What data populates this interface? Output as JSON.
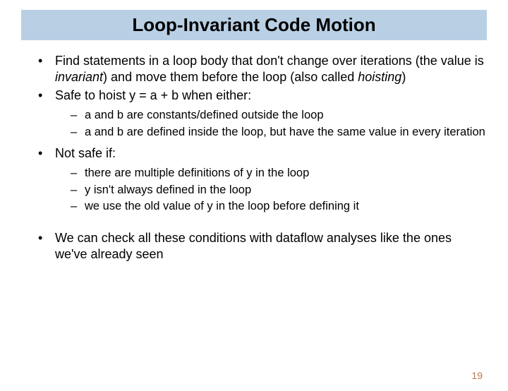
{
  "colors": {
    "title_bg": "#b9d0e4",
    "page_bg": "#ffffff",
    "text": "#000000",
    "page_number": "#b87850"
  },
  "typography": {
    "title_fontsize": 26,
    "title_weight": "bold",
    "body_fontsize": 18,
    "sub_fontsize": 16.5,
    "font_family": "Arial"
  },
  "title": "Loop-Invariant Code Motion",
  "bullets": {
    "b1_pre": "Find statements in a loop body that don't change over iterations (the value is ",
    "b1_italic1": "invariant",
    "b1_mid": ") and move them before the loop (also called ",
    "b1_italic2": "hoisting",
    "b1_post": ")",
    "b2": "Safe to hoist y = a + b when either:",
    "b2_sub1": "a and b are constants/defined outside the loop",
    "b2_sub2": "a and b are defined inside the loop, but have the same value in every iteration",
    "b3": "Not safe if:",
    "b3_sub1": "there are multiple definitions of y in the loop",
    "b3_sub2": "y isn't always defined in the loop",
    "b3_sub3": "we use the old value of y in the loop before defining it",
    "b4": "We can check all these conditions with dataflow analyses like the ones we've already seen"
  },
  "page_number": "19"
}
